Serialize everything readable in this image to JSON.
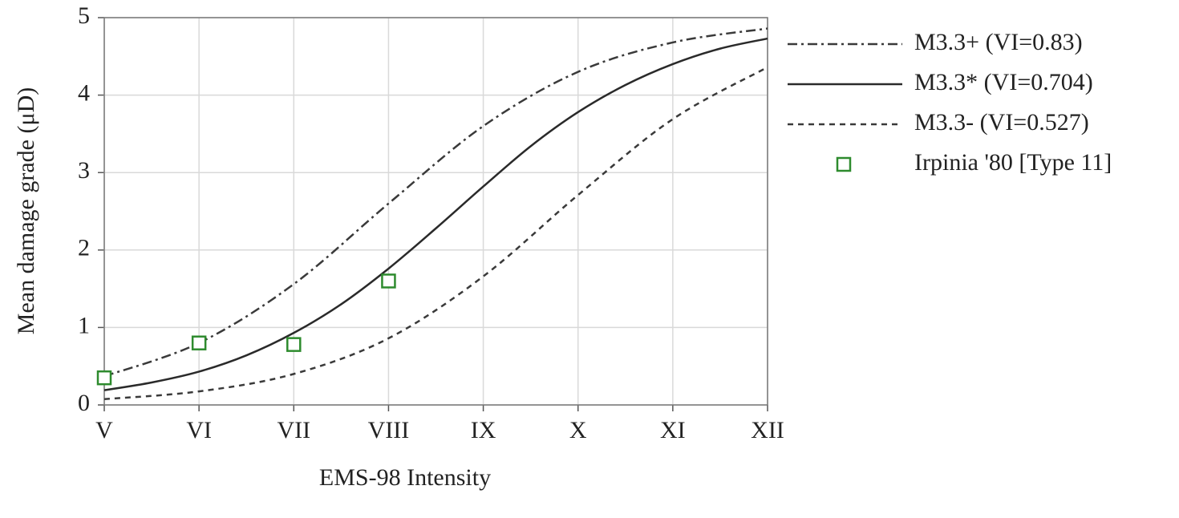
{
  "chart_data": {
    "type": "line",
    "x_label": "EMS-98 Intensity",
    "y_label": "Mean damage grade (μD)",
    "xlim": [
      5,
      12
    ],
    "xticks": [
      {
        "value": 5,
        "label": "V"
      },
      {
        "value": 6,
        "label": "VI"
      },
      {
        "value": 7,
        "label": "VII"
      },
      {
        "value": 8,
        "label": "VIII"
      },
      {
        "value": 9,
        "label": "IX"
      },
      {
        "value": 10,
        "label": "X"
      },
      {
        "value": 11,
        "label": "XI"
      },
      {
        "value": 12,
        "label": "XII"
      }
    ],
    "ylim": [
      0,
      5
    ],
    "yticks": [
      0,
      1,
      2,
      3,
      4,
      5
    ],
    "grid": true,
    "legend": "right",
    "series": [
      {
        "name": "M3.3+ (VI=0.83)",
        "color": "#3a3a3a",
        "style": "dashdot",
        "kind": "line",
        "x": [
          5,
          6,
          7,
          8,
          9,
          10,
          11,
          12
        ],
        "values": [
          0.37,
          0.8,
          1.56,
          2.6,
          3.6,
          4.3,
          4.68,
          4.86
        ]
      },
      {
        "name": "M3.3* (VI=0.704)",
        "color": "#2a2a2a",
        "style": "solid",
        "kind": "line",
        "x": [
          5,
          5.5,
          6,
          6.5,
          7,
          7.5,
          8,
          8.5,
          9,
          9.5,
          10,
          10.5,
          11,
          11.5,
          12
        ],
        "values": [
          0.19,
          0.29,
          0.43,
          0.64,
          0.93,
          1.3,
          1.76,
          2.28,
          2.82,
          3.34,
          3.78,
          4.13,
          4.4,
          4.6,
          4.73
        ]
      },
      {
        "name": "M3.3- (VI=0.527)",
        "color": "#3a3a3a",
        "style": "dashed",
        "kind": "line",
        "x": [
          5,
          6,
          7,
          8,
          9,
          10,
          11,
          12
        ],
        "values": [
          0.075,
          0.175,
          0.4,
          0.86,
          1.66,
          2.71,
          3.69,
          4.36
        ]
      },
      {
        "name": "Irpinia '80 [Type 11]",
        "color": "#2e8b2e",
        "kind": "scatter",
        "x": [
          5,
          6,
          7,
          8
        ],
        "values": [
          0.35,
          0.8,
          0.78,
          1.6
        ]
      }
    ]
  }
}
